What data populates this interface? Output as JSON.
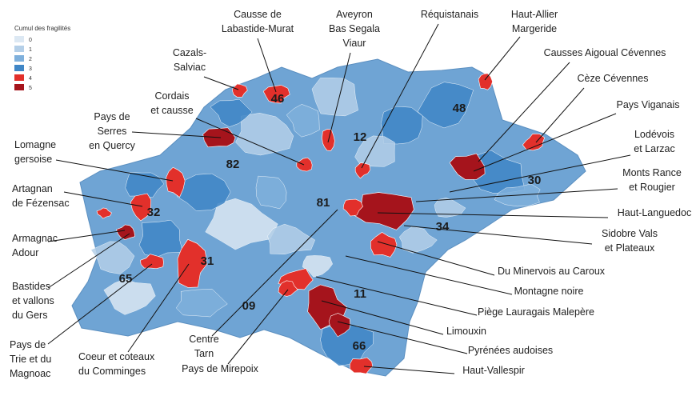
{
  "legend": {
    "title": "Cumul des fragilités",
    "items": [
      {
        "label": "0",
        "color": "#dce8f3"
      },
      {
        "label": "1",
        "color": "#b4cfe8"
      },
      {
        "label": "2",
        "color": "#7fb0dc"
      },
      {
        "label": "3",
        "color": "#3f86c6"
      },
      {
        "label": "4",
        "color": "#e2302b"
      },
      {
        "label": "5",
        "color": "#a5141c"
      }
    ]
  },
  "departments": [
    "46",
    "48",
    "12",
    "82",
    "30",
    "81",
    "32",
    "34",
    "31",
    "65",
    "09",
    "11",
    "66"
  ],
  "areas": [
    {
      "lines": [
        "Causse de",
        "Labastide-Murat"
      ]
    },
    {
      "lines": [
        "Cazals-",
        "Salviac"
      ]
    },
    {
      "lines": [
        "Aveyron",
        "Bas Segala",
        "Viaur"
      ]
    },
    {
      "lines": [
        "Réquistanais"
      ]
    },
    {
      "lines": [
        "Haut-Allier",
        "Margeride"
      ]
    },
    {
      "lines": [
        "Causses Aigoual Cévennes"
      ]
    },
    {
      "lines": [
        "Cèze Cévennes"
      ]
    },
    {
      "lines": [
        "Pays Viganais"
      ]
    },
    {
      "lines": [
        "Lodévois",
        "et Larzac"
      ]
    },
    {
      "lines": [
        "Monts Rance",
        "et Rougier"
      ]
    },
    {
      "lines": [
        "Haut-Languedoc"
      ]
    },
    {
      "lines": [
        "Sidobre Vals",
        "et Plateaux"
      ]
    },
    {
      "lines": [
        "Du Minervois au Caroux"
      ]
    },
    {
      "lines": [
        "Montagne noire"
      ]
    },
    {
      "lines": [
        "Piège Lauragais Malepère"
      ]
    },
    {
      "lines": [
        "Limouxin"
      ]
    },
    {
      "lines": [
        "Pyrénées audoises"
      ]
    },
    {
      "lines": [
        "Haut-Vallespir"
      ]
    },
    {
      "lines": [
        "Cordais",
        "et causse"
      ]
    },
    {
      "lines": [
        "Pays de",
        "Serres",
        "en Quercy"
      ]
    },
    {
      "lines": [
        "Lomagne",
        "gersoise"
      ]
    },
    {
      "lines": [
        "Artagnan",
        "de Fézensac"
      ]
    },
    {
      "lines": [
        "Armagnac",
        "Adour"
      ]
    },
    {
      "lines": [
        "Bastides",
        "et vallons",
        "du Gers"
      ]
    },
    {
      "lines": [
        "Pays de",
        "Trie et du",
        "Magnoac"
      ]
    },
    {
      "lines": [
        "Coeur et coteaux",
        "du Comminges"
      ]
    },
    {
      "lines": [
        "Centre",
        "Tarn"
      ]
    },
    {
      "lines": [
        "Pays de Mirepoix"
      ]
    }
  ]
}
